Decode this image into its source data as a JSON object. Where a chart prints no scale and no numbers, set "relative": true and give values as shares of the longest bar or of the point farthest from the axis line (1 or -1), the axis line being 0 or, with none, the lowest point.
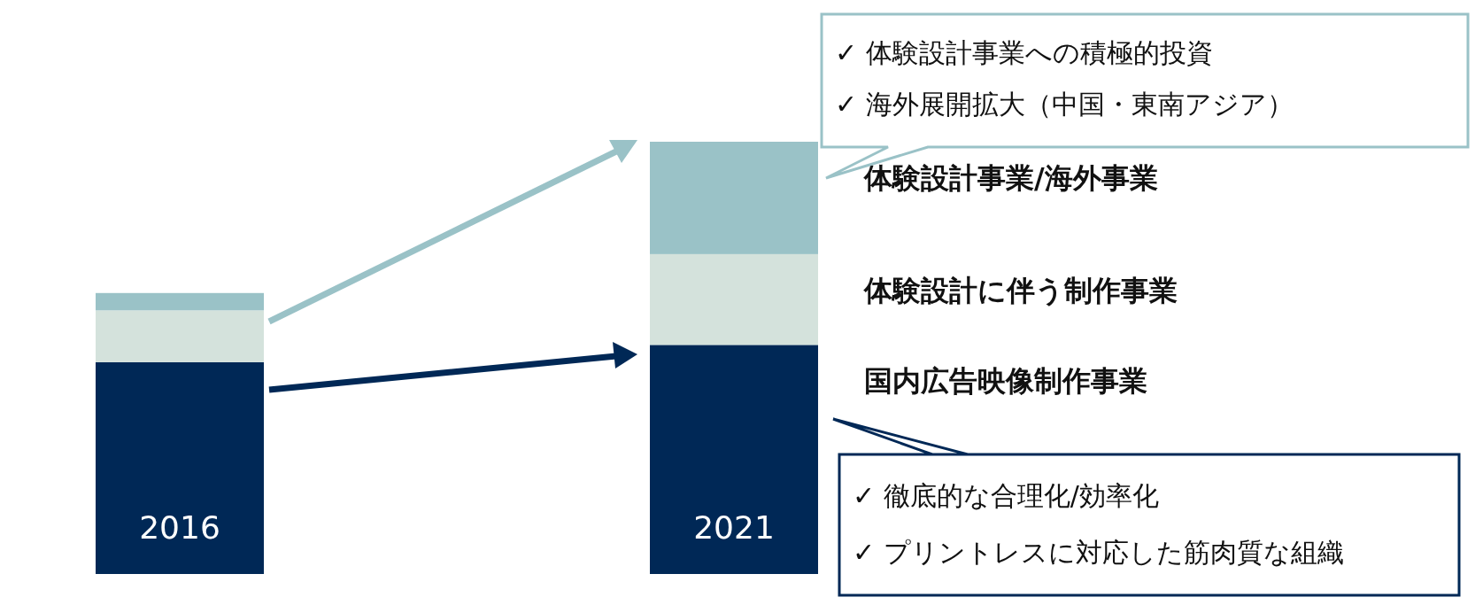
{
  "chart_data": {
    "type": "bar",
    "stacked": true,
    "relative": true,
    "categories": [
      "2016",
      "2021"
    ],
    "series": [
      {
        "name": "国内広告映像制作事業",
        "color": "#002856",
        "values": [
          0.49,
          0.53
        ]
      },
      {
        "name": "体験設計に伴う制作事業",
        "color": "#d4e2dc",
        "values": [
          0.12,
          0.21
        ]
      },
      {
        "name": "体験設計事業/海外事業",
        "color": "#9ac2c7",
        "values": [
          0.04,
          0.26
        ]
      }
    ],
    "annotations": [
      "✓ 体験設計事業への積極的投資",
      "✓ 海外展開拡大（中国・東南アジア）",
      "✓ 徹底的な合理化/効率化",
      "✓ プリントレスに対応した筋肉質な組織"
    ]
  }
}
